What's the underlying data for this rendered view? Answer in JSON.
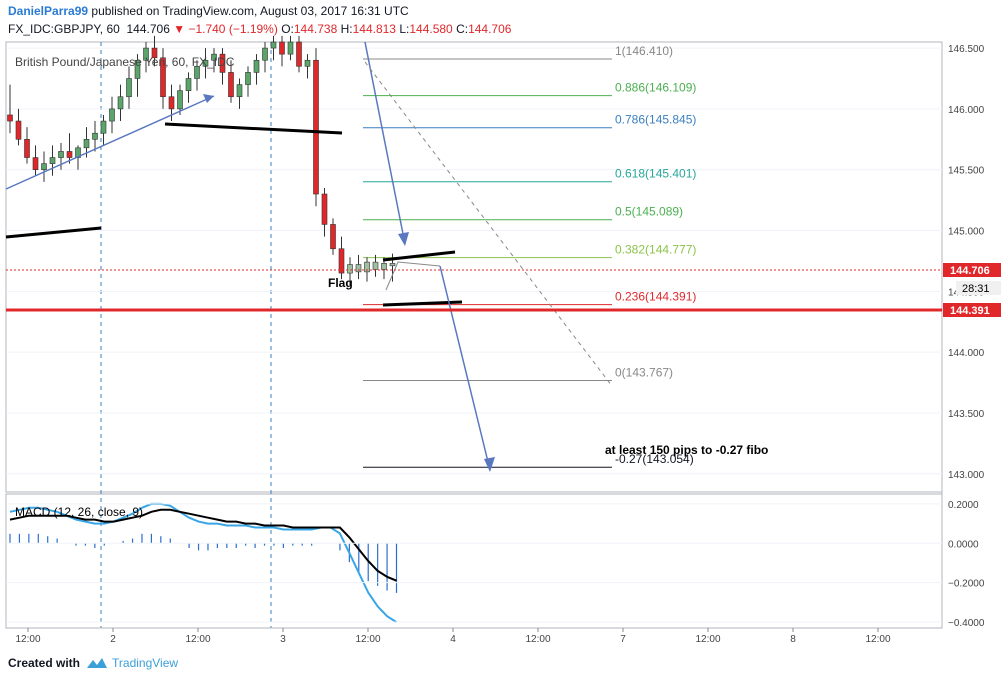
{
  "header": {
    "author": "DanielParra99",
    "published_text": " published on TradingView.com, August 03, 2017 16:31 UTC",
    "symbol": "FX_IDC:GBPJPY, 60",
    "last": "144.706",
    "change": "▼ −1.740 (−1.19%)",
    "o_label": "O:",
    "o_value": "144.738",
    "h_label": "H:",
    "h_value": "144.813",
    "l_label": "L:",
    "l_value": "144.580",
    "c_label": "C:",
    "c_value": "144.706"
  },
  "legend": {
    "instrument": "British Pound/Japanese Yen, 60, FX_IDC"
  },
  "macd": {
    "label": "MACD (12, 26, close, 9)"
  },
  "footer": {
    "created_with": "Created with",
    "brand": "TradingView"
  },
  "colors": {
    "up": "#5ba56a",
    "down": "#e0282b",
    "macd": "#39a5e6",
    "signal": "#000000",
    "hist": "#2a6fd0",
    "fib_red": "#e0282b",
    "fib_green": "#4caf50",
    "fib_teal": "#26a69a",
    "fib_blue": "#3a7fc0",
    "fib_gray": "#888888",
    "fib_olive": "#8bc34a",
    "arrow": "#5a78c0"
  },
  "chart_data": {
    "type": "candlestick",
    "price_axis": {
      "ylim": [
        142.85,
        146.55
      ],
      "ticks": [
        "146.500",
        "146.000",
        "145.500",
        "145.000",
        "144.500",
        "144.000",
        "143.500",
        "143.000"
      ],
      "tick_values": [
        146.5,
        146.0,
        145.5,
        145.0,
        144.5,
        144.0,
        143.5,
        143.0
      ]
    },
    "price_labels": {
      "last": "144.706",
      "countdown": "28:31",
      "support": "144.391"
    },
    "time_axis": {
      "ticks": [
        "12:00",
        "2",
        "12:00",
        "3",
        "12:00",
        "4",
        "12:00",
        "7",
        "12:00",
        "8",
        "12:00"
      ],
      "bar_index": [
        0,
        10,
        20,
        30,
        40,
        50,
        60,
        70,
        80,
        90,
        100
      ]
    },
    "candles": [
      [
        145.95,
        146.2,
        145.8,
        145.9
      ],
      [
        145.9,
        146.0,
        145.7,
        145.75
      ],
      [
        145.75,
        145.85,
        145.55,
        145.6
      ],
      [
        145.6,
        145.7,
        145.45,
        145.5
      ],
      [
        145.5,
        145.65,
        145.4,
        145.55
      ],
      [
        145.55,
        145.7,
        145.45,
        145.6
      ],
      [
        145.6,
        145.72,
        145.5,
        145.65
      ],
      [
        145.65,
        145.8,
        145.55,
        145.6
      ],
      [
        145.6,
        145.7,
        145.5,
        145.68
      ],
      [
        145.68,
        145.85,
        145.6,
        145.75
      ],
      [
        145.75,
        145.9,
        145.65,
        145.8
      ],
      [
        145.8,
        145.95,
        145.7,
        145.9
      ],
      [
        145.9,
        146.1,
        145.8,
        146.0
      ],
      [
        146.0,
        146.2,
        145.9,
        146.1
      ],
      [
        146.1,
        146.35,
        146.0,
        146.25
      ],
      [
        146.25,
        146.45,
        146.1,
        146.4
      ],
      [
        146.4,
        146.55,
        146.3,
        146.5
      ],
      [
        146.5,
        146.6,
        146.35,
        146.42
      ],
      [
        146.42,
        146.5,
        146.0,
        146.1
      ],
      [
        146.1,
        146.2,
        145.9,
        146.0
      ],
      [
        146.0,
        146.2,
        145.95,
        146.15
      ],
      [
        146.15,
        146.3,
        146.05,
        146.25
      ],
      [
        146.25,
        146.4,
        146.15,
        146.35
      ],
      [
        146.35,
        146.5,
        146.25,
        146.4
      ],
      [
        146.4,
        146.5,
        146.3,
        146.45
      ],
      [
        146.45,
        146.5,
        146.2,
        146.3
      ],
      [
        146.3,
        146.4,
        146.05,
        146.1
      ],
      [
        146.1,
        146.25,
        146.0,
        146.2
      ],
      [
        146.2,
        146.35,
        146.1,
        146.3
      ],
      [
        146.3,
        146.45,
        146.2,
        146.4
      ],
      [
        146.4,
        146.55,
        146.3,
        146.5
      ],
      [
        146.5,
        146.6,
        146.4,
        146.55
      ],
      [
        146.55,
        146.6,
        146.35,
        146.45
      ],
      [
        146.45,
        146.6,
        146.4,
        146.55
      ],
      [
        146.55,
        146.6,
        146.3,
        146.35
      ],
      [
        146.35,
        146.45,
        146.25,
        146.4
      ],
      [
        146.4,
        146.5,
        145.2,
        145.3
      ],
      [
        145.3,
        145.35,
        144.95,
        145.05
      ],
      [
        145.05,
        145.1,
        144.8,
        144.85
      ],
      [
        144.85,
        144.95,
        144.6,
        144.65
      ],
      [
        144.65,
        144.78,
        144.55,
        144.72
      ],
      [
        144.72,
        144.8,
        144.6,
        144.66
      ],
      [
        144.66,
        144.78,
        144.58,
        144.74
      ],
      [
        144.74,
        144.8,
        144.62,
        144.68
      ],
      [
        144.68,
        144.78,
        144.6,
        144.73
      ],
      [
        144.73,
        144.81,
        144.58,
        144.71
      ]
    ],
    "fib_levels": [
      {
        "label": "1(146.410)",
        "value": 146.41,
        "color": "#888888"
      },
      {
        "label": "0.886(146.109)",
        "value": 146.109,
        "color": "#4caf50"
      },
      {
        "label": "0.786(145.845)",
        "value": 145.845,
        "color": "#3a7fc0"
      },
      {
        "label": "0.618(145.401)",
        "value": 145.401,
        "color": "#26a69a"
      },
      {
        "label": "0.5(145.089)",
        "value": 145.089,
        "color": "#4caf50"
      },
      {
        "label": "0.382(144.777)",
        "value": 144.777,
        "color": "#8bc34a"
      },
      {
        "label": "0.236(144.391)",
        "value": 144.391,
        "color": "#e0282b"
      },
      {
        "label": "0(143.767)",
        "value": 143.767,
        "color": "#888888"
      },
      {
        "label": "-0.27(143.054)",
        "value": 143.054,
        "color": "#131722"
      }
    ],
    "annotations": {
      "flag": "Flag",
      "target": "at least 150 pips to -0.27 fibo"
    },
    "macd_axis": {
      "ylim": [
        -0.42,
        0.24
      ],
      "ticks": [
        "0.2000",
        "0.0000",
        "−0.2000",
        "−0.4000"
      ],
      "tick_values": [
        0.2,
        0.0,
        -0.2,
        -0.4
      ]
    },
    "macd_series": [
      0.16,
      0.17,
      0.18,
      0.18,
      0.17,
      0.16,
      0.14,
      0.12,
      0.11,
      0.1,
      0.1,
      0.11,
      0.13,
      0.15,
      0.18,
      0.2,
      0.2,
      0.19,
      0.16,
      0.13,
      0.11,
      0.1,
      0.1,
      0.09,
      0.09,
      0.09,
      0.08,
      0.08,
      0.08,
      0.07,
      0.07,
      0.07,
      0.07,
      0.08,
      0.08,
      0.05,
      -0.05,
      -0.15,
      -0.25,
      -0.32,
      -0.37,
      -0.4
    ],
    "signal_series": [
      0.12,
      0.13,
      0.14,
      0.14,
      0.14,
      0.14,
      0.14,
      0.13,
      0.12,
      0.12,
      0.11,
      0.11,
      0.12,
      0.13,
      0.14,
      0.16,
      0.17,
      0.17,
      0.16,
      0.15,
      0.14,
      0.13,
      0.12,
      0.11,
      0.11,
      0.1,
      0.1,
      0.09,
      0.09,
      0.09,
      0.08,
      0.08,
      0.08,
      0.08,
      0.08,
      0.08,
      0.03,
      -0.03,
      -0.09,
      -0.14,
      -0.17,
      -0.19
    ]
  }
}
